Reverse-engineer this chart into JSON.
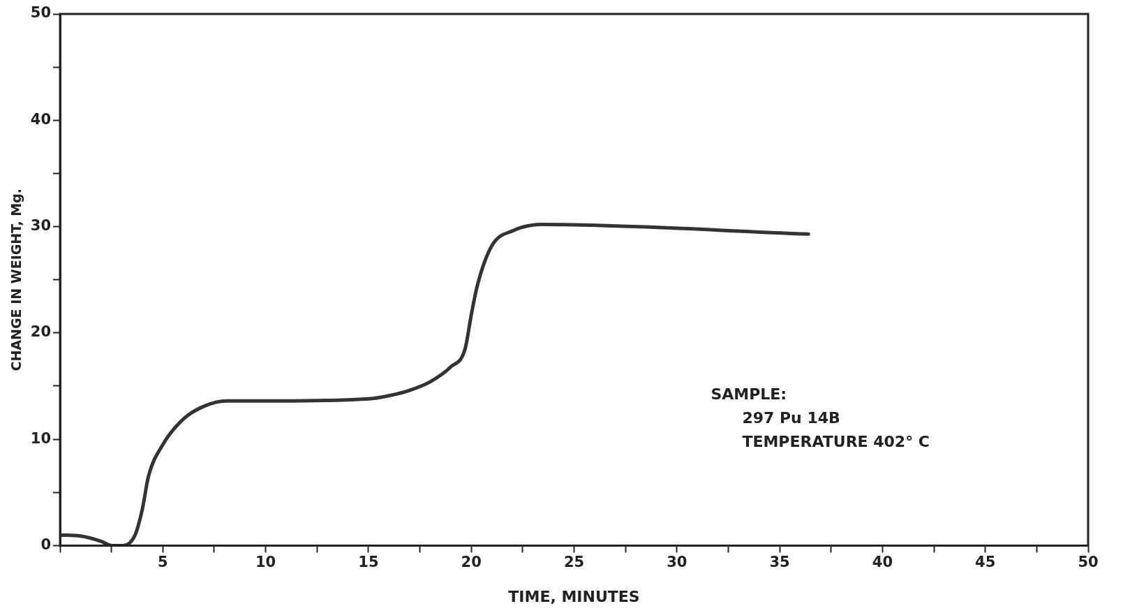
{
  "chart_data": {
    "type": "line",
    "xlabel": "TIME, MINUTES",
    "ylabel": "CHANGE IN WEIGHT, Mg.",
    "x": [
      0,
      1,
      2,
      2.5,
      3.07,
      3.65,
      4.0,
      4.3,
      5.0,
      6.0,
      7.0,
      8.1,
      10,
      15,
      16,
      17,
      18,
      19,
      19.7,
      20.0,
      20.3,
      21.0,
      22.0,
      23.4,
      36.4
    ],
    "series": [
      {
        "color": "#333333",
        "values": [
          1.0,
          0.9,
          0.4,
          0,
          0,
          1.0,
          3.4,
          6.5,
          9.5,
          11.9,
          13.1,
          13.6,
          13.6,
          13.8,
          14.1,
          14.6,
          15.4,
          16.8,
          18.5,
          21.7,
          24.5,
          28.2,
          29.6,
          30.2,
          29.3
        ]
      }
    ],
    "xlim": [
      0,
      50
    ],
    "ylim": [
      0,
      50
    ],
    "xticks": [
      {
        "value": 0,
        "label": null
      },
      {
        "value": 2.5,
        "label": null
      },
      5,
      {
        "value": 7.5,
        "label": null
      },
      10,
      {
        "value": 12.5,
        "label": null
      },
      15,
      {
        "value": 17.5,
        "label": null
      },
      20,
      {
        "value": 22.5,
        "label": null
      },
      25,
      {
        "value": 27.5,
        "label": null
      },
      30,
      {
        "value": 32.5,
        "label": null
      },
      35,
      {
        "value": 37.5,
        "label": null
      },
      40,
      {
        "value": 42.5,
        "label": null
      },
      45,
      {
        "value": 47.5,
        "label": null
      },
      50
    ],
    "yticks": [
      0,
      {
        "value": 5,
        "label": null
      },
      10,
      {
        "value": 15,
        "label": null
      },
      20,
      {
        "value": 25,
        "label": null
      },
      30,
      {
        "value": 35,
        "label": null
      },
      40,
      {
        "value": 45,
        "label": null
      },
      50
    ],
    "annotations": [
      "SAMPLE:",
      "297 Pu 14B",
      "TEMPERATURE 402° C"
    ],
    "grid": false,
    "legend": false,
    "marker": "none",
    "line_style": "solid"
  }
}
